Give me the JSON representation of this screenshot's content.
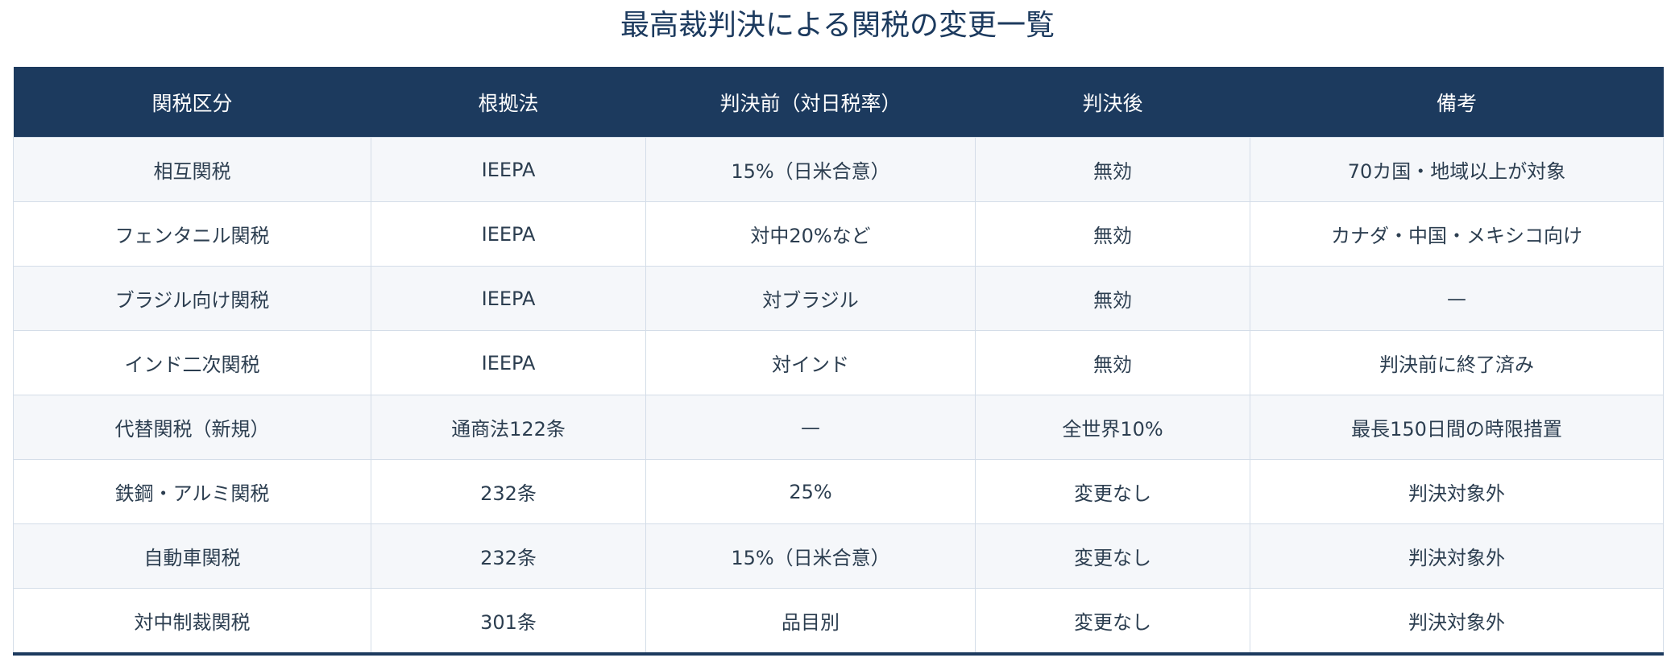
{
  "title": "最高裁判決による関税の変更一覧",
  "columns": [
    "関税区分",
    "根拠法",
    "判決前（対日税率）",
    "判決後",
    "備考"
  ],
  "status_colors": {
    "invalid": "#c0392b",
    "new": "#2980b9",
    "unchanged": "#27ae60"
  },
  "header_color": "#1c3a5e",
  "rows": [
    {
      "category": "相互関税",
      "law": "IEEPA",
      "before": "15%（日米合意）",
      "after": "無効",
      "after_status": "invalid",
      "note": "70カ国・地域以上が対象"
    },
    {
      "category": "フェンタニル関税",
      "law": "IEEPA",
      "before": "対中20%など",
      "after": "無効",
      "after_status": "invalid",
      "note": "カナダ・中国・メキシコ向け"
    },
    {
      "category": "ブラジル向け関税",
      "law": "IEEPA",
      "before": "対ブラジル",
      "after": "無効",
      "after_status": "invalid",
      "note": "—"
    },
    {
      "category": "インド二次関税",
      "law": "IEEPA",
      "before": "対インド",
      "after": "無効",
      "after_status": "invalid",
      "note": "判決前に終了済み"
    },
    {
      "category": "代替関税（新規）",
      "law": "通商法122条",
      "before": "—",
      "after": "全世界10%",
      "after_status": "new",
      "note": "最長150日間の時限措置"
    },
    {
      "category": "鉄鋼・アルミ関税",
      "law": "232条",
      "before": "25%",
      "after": "変更なし",
      "after_status": "unchanged",
      "note": "判決対象外"
    },
    {
      "category": "自動車関税",
      "law": "232条",
      "before": "15%（日米合意）",
      "after": "変更なし",
      "after_status": "unchanged",
      "note": "判決対象外"
    },
    {
      "category": "対中制裁関税",
      "law": "301条",
      "before": "品目別",
      "after": "変更なし",
      "after_status": "unchanged",
      "note": "判決対象外"
    }
  ]
}
